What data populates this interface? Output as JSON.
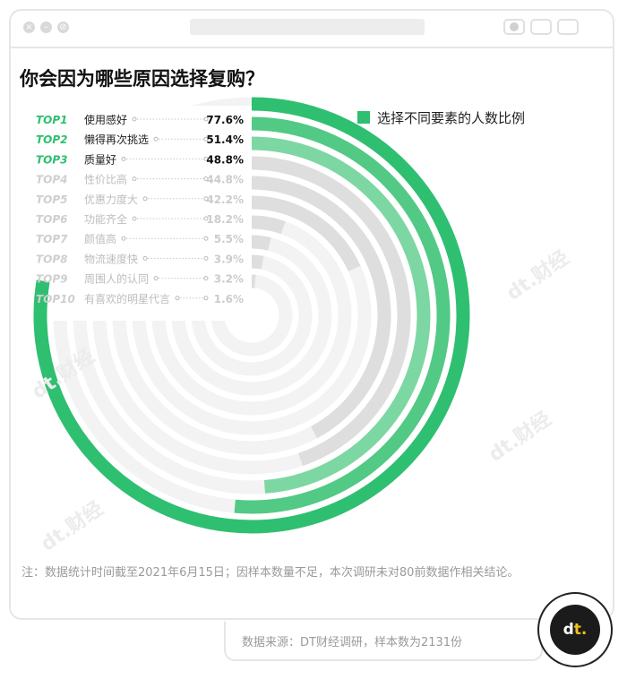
{
  "title": "你会因为哪些原因选择复购？",
  "legend_label": "选择不同要素的人数比例",
  "note": "注：数据统计时间截至2021年6月15日；因样本数量不足，本次调研未对80前数据作相关结论。",
  "source": "数据来源：DT财经调研，样本数为2131份",
  "badge": {
    "main": "d",
    "accent": "t."
  },
  "watermark": "dt.财经",
  "colors": {
    "ring_dark": "#2fbf71",
    "ring_mid": "#52c985",
    "ring_light": "#7dd7a2",
    "ring_gray": "#dedede",
    "track": "#f3f3f3",
    "rank_green": "#2fbf71",
    "rank_gray": "#cfcfcf"
  },
  "chart_data": {
    "type": "radial-bar",
    "title": "你会因为哪些原因选择复购？",
    "series": [
      {
        "name": "选择不同要素的人数比例",
        "values": [
          77.6,
          51.4,
          48.8,
          44.8,
          42.2,
          18.2,
          5.5,
          3.9,
          3.2,
          1.6
        ]
      }
    ],
    "categories": [
      "使用感好",
      "懒得再次挑选",
      "质量好",
      "性价比高",
      "优惠力度大",
      "功能齐全",
      "颜值高",
      "物流速度快",
      "周围人的认同",
      "有喜欢的明星代言"
    ],
    "ranks": [
      "TOP1",
      "TOP2",
      "TOP3",
      "TOP4",
      "TOP5",
      "TOP6",
      "TOP7",
      "TOP8",
      "TOP9",
      "TOP10"
    ],
    "value_labels": [
      "77.6%",
      "51.4%",
      "48.8%",
      "44.8%",
      "42.2%",
      "18.2%",
      "5.5%",
      "3.9%",
      "3.2%",
      "1.6%"
    ],
    "unit": "%",
    "max": 100,
    "legend": "top-right"
  }
}
